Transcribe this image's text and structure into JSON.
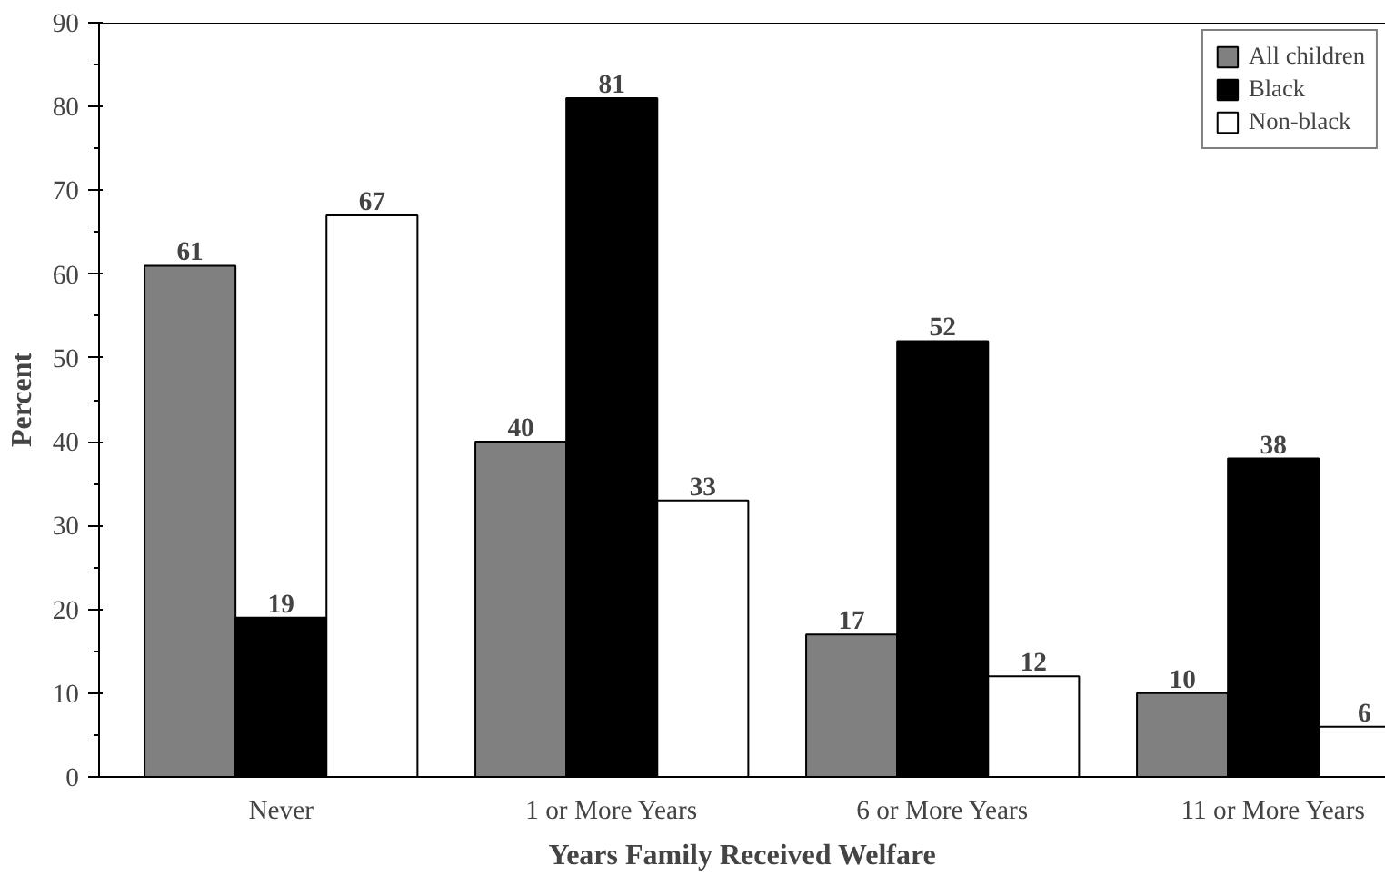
{
  "chart_data": {
    "type": "bar",
    "xlabel": "Years Family Received Welfare",
    "ylabel": "Percent",
    "categories": [
      "Never",
      "1 or More Years",
      "6 or More Years",
      "11 or More Years"
    ],
    "series": [
      {
        "name": "All children",
        "color": "#808080",
        "values": [
          61,
          40,
          17,
          10
        ]
      },
      {
        "name": "Black",
        "color": "#000000",
        "values": [
          19,
          81,
          52,
          38
        ]
      },
      {
        "name": "Non-black",
        "color": "#ffffff",
        "values": [
          67,
          33,
          12,
          6
        ]
      }
    ],
    "ylim": [
      0,
      90
    ],
    "yticks": [
      0,
      {
        "value": 5,
        "label": null
      },
      10,
      {
        "value": 15,
        "label": null
      },
      20,
      {
        "value": 25,
        "label": null
      },
      30,
      {
        "value": 35,
        "label": null
      },
      40,
      {
        "value": 45,
        "label": null
      },
      50,
      {
        "value": 55,
        "label": null
      },
      60,
      {
        "value": 65,
        "label": null
      },
      70,
      {
        "value": 75,
        "label": null
      },
      80,
      {
        "value": 85,
        "label": null
      },
      90
    ],
    "data_labels": true,
    "legend": "top right",
    "grid": false
  }
}
